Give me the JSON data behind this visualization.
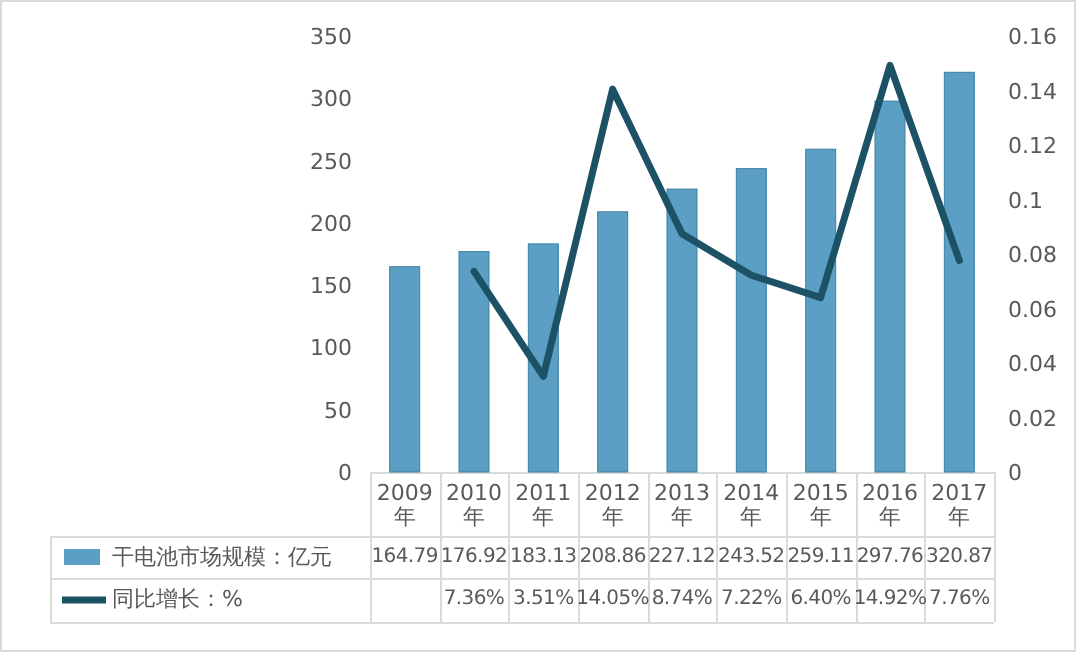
{
  "chart_data": {
    "type": "bar",
    "categories": [
      "2009年",
      "2010年",
      "2011年",
      "2012年",
      "2013年",
      "2014年",
      "2015年",
      "2016年",
      "2017年"
    ],
    "series": [
      {
        "name": "干电池市场规模：亿元",
        "color": "#5b9fc4",
        "values": [
          164.79,
          176.92,
          183.13,
          208.86,
          227.12,
          243.52,
          259.11,
          297.76,
          320.87
        ],
        "value_labels": [
          "164.79",
          "176.92",
          "183.13",
          "208.86",
          "227.12",
          "243.52",
          "259.11",
          "297.76",
          "320.87"
        ]
      },
      {
        "name": "同比增长：%",
        "type": "line",
        "axis": "y2",
        "color": "#1d5266",
        "values": [
          null,
          0.0736,
          0.0351,
          0.1405,
          0.0874,
          0.0722,
          0.064,
          0.1492,
          0.0776
        ],
        "value_labels": [
          null,
          "7.36%",
          "3.51%",
          "14.05%",
          "8.74%",
          "7.22%",
          "6.40%",
          "14.92%",
          "7.76%"
        ]
      }
    ],
    "ylim": [
      0,
      350
    ],
    "yticks": [
      0,
      50,
      100,
      150,
      200,
      250,
      300,
      350
    ],
    "y2lim": [
      0,
      0.16
    ],
    "y2ticks": [
      0,
      0.02,
      0.04,
      0.06,
      0.08,
      0.1,
      0.12,
      0.14,
      0.16
    ],
    "legend": "bottom"
  }
}
